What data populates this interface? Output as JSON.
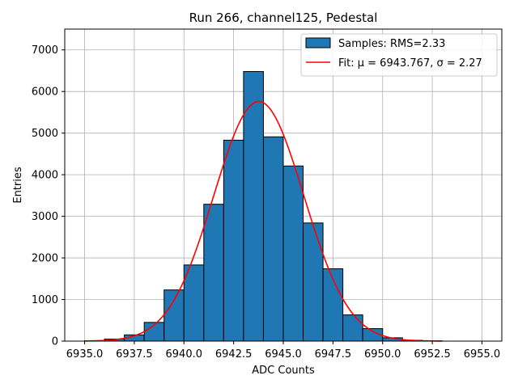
{
  "chart_data": {
    "type": "bar",
    "title": "Run 266, channel125, Pedestal",
    "xlabel": "ADC Counts",
    "ylabel": "Entries",
    "xlim": [
      6934.0,
      6956.0
    ],
    "ylim": [
      0,
      7500
    ],
    "grid": true,
    "legend_placement": "top-right",
    "xticks": [
      6935.0,
      6937.5,
      6940.0,
      6942.5,
      6945.0,
      6947.5,
      6950.0,
      6952.5,
      6955.0
    ],
    "xtick_labels": [
      "6935.0",
      "6937.5",
      "6940.0",
      "6942.5",
      "6945.0",
      "6947.5",
      "6950.0",
      "6952.5",
      "6955.0"
    ],
    "yticks": [
      0,
      1000,
      2000,
      3000,
      4000,
      5000,
      6000,
      7000
    ],
    "ytick_labels": [
      "0",
      "1000",
      "2000",
      "3000",
      "4000",
      "5000",
      "6000",
      "7000"
    ],
    "histogram": {
      "name": "Samples: RMS=2.33",
      "bin_width": 1.0,
      "bin_starts": [
        6935,
        6936,
        6937,
        6938,
        6939,
        6940,
        6941,
        6942,
        6943,
        6944,
        6945,
        6946,
        6947,
        6948,
        6949,
        6950,
        6951,
        6952
      ],
      "values": [
        10,
        50,
        150,
        450,
        1230,
        1830,
        3290,
        4830,
        6480,
        4910,
        4210,
        2840,
        1740,
        630,
        300,
        80,
        20,
        5
      ],
      "color": "#1f77b4",
      "edge_color": "#000000"
    },
    "fit": {
      "name": "Fit: μ = 6943.767, σ = 2.27",
      "mu": 6943.767,
      "sigma": 2.27,
      "amplitude": 5760,
      "x_range": [
        6935.0,
        6953.0
      ],
      "color": "#ff0000"
    }
  }
}
